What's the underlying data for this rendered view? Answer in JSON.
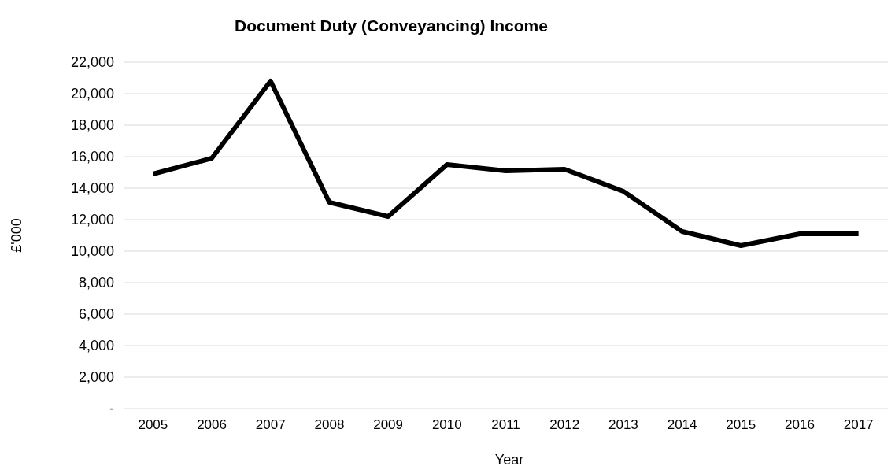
{
  "chart_data": {
    "type": "line",
    "title": "Document Duty (Conveyancing) Income",
    "xlabel": "Year",
    "ylabel": "£'000",
    "categories": [
      "2005",
      "2006",
      "2007",
      "2008",
      "2009",
      "2010",
      "2011",
      "2012",
      "2013",
      "2014",
      "2015",
      "2016",
      "2017"
    ],
    "series": [
      {
        "color": "#000000",
        "values": [
          14900,
          15900,
          20800,
          13100,
          12200,
          15500,
          15100,
          15200,
          13800,
          11250,
          10350,
          11100,
          11100
        ]
      }
    ],
    "ylim": [
      0,
      22000
    ],
    "yticks": [
      {
        "value": 0,
        "label": "-"
      },
      {
        "value": 2000,
        "label": "2,000"
      },
      {
        "value": 4000,
        "label": "4,000"
      },
      {
        "value": 6000,
        "label": "6,000"
      },
      {
        "value": 8000,
        "label": "8,000"
      },
      {
        "value": 10000,
        "label": "10,000"
      },
      {
        "value": 12000,
        "label": "12,000"
      },
      {
        "value": 14000,
        "label": "14,000"
      },
      {
        "value": 16000,
        "label": "16,000"
      },
      {
        "value": 18000,
        "label": "18,000"
      },
      {
        "value": 20000,
        "label": "20,000"
      },
      {
        "value": 22000,
        "label": "22,000"
      }
    ],
    "grid": "y",
    "marker": "none",
    "line_style": "solid"
  }
}
